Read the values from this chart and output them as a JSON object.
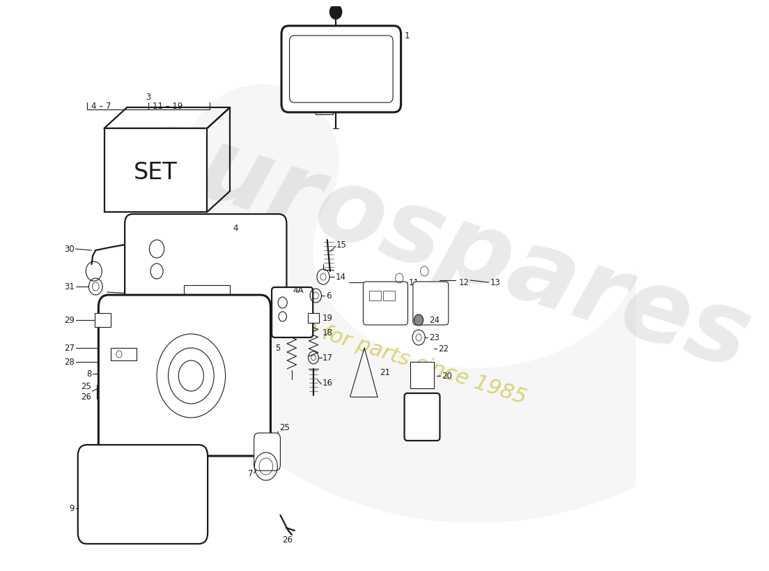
{
  "background_color": "#ffffff",
  "line_color": "#1a1a1a",
  "watermark_main": "eurospares",
  "watermark_sub": "a passion for parts since 1985",
  "watermark_color": "#bbbbbb",
  "watermark_sub_color": "#c8c030",
  "fig_width": 11.0,
  "fig_height": 8.0,
  "lw_main": 1.6,
  "lw_thin": 0.8,
  "lw_thick": 2.2,
  "label_fontsize": 8.5
}
